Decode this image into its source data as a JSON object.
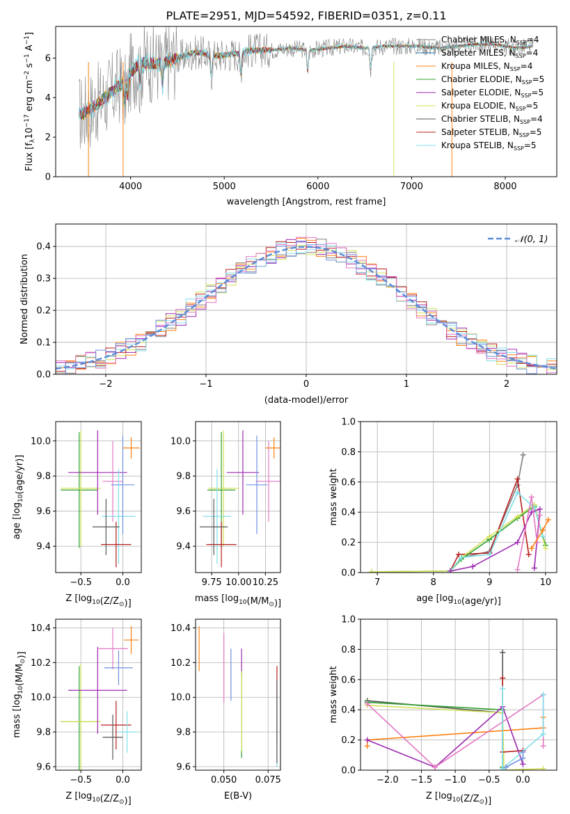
{
  "figure": {
    "title": "PLATE=2951, MJD=54592, FIBERID=0351, z=0.11"
  },
  "colors": {
    "ChabrierMILES": "#7f7f7f",
    "SalpeterMILES": "#1f77b4",
    "KroupaMILES": "#ff7f0e",
    "ChabrierELODIE": "#2ca02c",
    "SalpeterELODIE": "#9c27b0",
    "KroupaELODIE": "#d4e157",
    "ChabrierSTELIB": "#555555",
    "SalpeterSTELIB": "#b71c1c",
    "KroupaSTELIB": "#80deea",
    "extra1": "#e377c2",
    "extra2": "#6f8fdf",
    "extra3": "#bcbd22",
    "gaussian": "#5b8bd8"
  },
  "chart_data": [
    {
      "id": "spectrum",
      "type": "line",
      "xlabel": "wavelength [Angstrom, rest frame]",
      "ylabel_parts": [
        "Flux [f",
        "λ",
        "10",
        "−17",
        " erg cm",
        "−2",
        " s",
        "−1",
        " A",
        "−1",
        "]"
      ],
      "xlim": [
        3200,
        8550
      ],
      "ylim": [
        0,
        7.6
      ],
      "xticks": [
        4000,
        5000,
        6000,
        7000,
        8000
      ],
      "yticks": [
        0,
        2,
        4,
        6
      ],
      "grid": false,
      "legend_position": "right",
      "x": [
        3500,
        3700,
        3900,
        4100,
        4300,
        4500,
        4700,
        4900,
        5100,
        5300,
        5500,
        5700,
        5900,
        6100,
        6300,
        6500,
        6700,
        6900,
        7100,
        7300,
        7500,
        7700,
        7900,
        8100,
        8300
      ],
      "y": [
        3.2,
        3.9,
        4.7,
        5.8,
        5.7,
        6.0,
        6.3,
        6.1,
        6.2,
        6.4,
        6.4,
        6.5,
        6.4,
        6.5,
        6.6,
        6.5,
        6.6,
        6.6,
        6.6,
        6.5,
        6.6,
        6.7,
        6.7,
        6.5,
        6.6
      ],
      "series": [
        {
          "name_parts": [
            "Chabrier MILES, N",
            "SSP",
            "=4"
          ],
          "color_key": "ChabrierMILES",
          "noise": 1.3
        },
        {
          "name_parts": [
            "Salpeter MILES, N",
            "SSP",
            "=4"
          ],
          "color_key": "SalpeterMILES",
          "noise": 0.2
        },
        {
          "name_parts": [
            "Kroupa MILES, N",
            "SSP",
            "=4"
          ],
          "color_key": "KroupaMILES",
          "noise": 0.25
        },
        {
          "name_parts": [
            "Chabrier ELODIE, N",
            "SSP",
            "=5"
          ],
          "color_key": "ChabrierELODIE",
          "noise": 0.2
        },
        {
          "name_parts": [
            "Salpeter ELODIE, N",
            "SSP",
            "=5"
          ],
          "color_key": "SalpeterELODIE",
          "noise": 0.2
        },
        {
          "name_parts": [
            "Kroupa ELODIE, N",
            "SSP",
            "=5"
          ],
          "color_key": "KroupaELODIE",
          "noise": 0.2
        },
        {
          "name_parts": [
            "Chabrier STELIB, N",
            "SSP",
            "=4"
          ],
          "color_key": "ChabrierSTELIB",
          "noise": 0.2
        },
        {
          "name_parts": [
            "Salpeter STELIB, N",
            "SSP",
            "=5"
          ],
          "color_key": "SalpeterSTELIB",
          "noise": 0.2
        },
        {
          "name_parts": [
            "Kroupa STELIB, N",
            "SSP",
            "=5"
          ],
          "color_key": "KroupaSTELIB",
          "noise": 0.35
        }
      ]
    },
    {
      "id": "residuals",
      "type": "line",
      "xlabel": "(data-model)/error",
      "ylabel": "Normed distribution",
      "xlim": [
        -2.5,
        2.5
      ],
      "ylim": [
        0,
        0.47
      ],
      "xticks": [
        -2,
        -1,
        0,
        1,
        2
      ],
      "yticks": [
        0.0,
        0.1,
        0.2,
        0.3,
        0.4
      ],
      "grid": true,
      "legend_position": "top-right",
      "legend": "𝒩(0, 1)",
      "bin_width": 0.1,
      "bin_start": -2.5,
      "series_color_keys": [
        "ChabrierMILES",
        "KroupaMILES",
        "SalpeterELODIE",
        "KroupaELODIE",
        "SalpeterSTELIB",
        "KroupaSTELIB",
        "extra1",
        "extra2"
      ]
    },
    {
      "id": "z-age",
      "type": "scatter",
      "xlabel": "Z [log10(Z/Z⊙)]",
      "ylabel": "age  [log10(age/yr)]",
      "xlim": [
        -0.8,
        0.22
      ],
      "ylim": [
        9.25,
        10.11
      ],
      "xticks": [
        -0.5,
        0.0
      ],
      "yticks": [
        9.4,
        9.6,
        9.8,
        10.0
      ],
      "grid": true,
      "points": [
        {
          "x": -0.52,
          "y": 9.72,
          "xerr": 0.22,
          "yerr": 0.33,
          "color_key": "ChabrierELODIE"
        },
        {
          "x": -0.5,
          "y": 9.73,
          "xerr": 0.24,
          "yerr": 0.33,
          "color_key": "KroupaELODIE"
        },
        {
          "x": -0.3,
          "y": 9.82,
          "xerr": 0.35,
          "yerr": 0.24,
          "color_key": "SalpeterELODIE"
        },
        {
          "x": -0.12,
          "y": 9.77,
          "xerr": 0.12,
          "yerr": 0.23,
          "color_key": "extra1"
        },
        {
          "x": -0.05,
          "y": 9.57,
          "xerr": 0.2,
          "yerr": 0.27,
          "color_key": "KroupaSTELIB"
        },
        {
          "x": -0.08,
          "y": 9.41,
          "xerr": 0.18,
          "yerr": 0.13,
          "color_key": "SalpeterSTELIB"
        },
        {
          "x": -0.2,
          "y": 9.51,
          "xerr": 0.16,
          "yerr": 0.16,
          "color_key": "ChabrierSTELIB"
        },
        {
          "x": 0.0,
          "y": 9.75,
          "xerr": 0.14,
          "yerr": 0.28,
          "color_key": "extra2"
        },
        {
          "x": 0.1,
          "y": 9.96,
          "xerr": 0.1,
          "yerr": 0.06,
          "color_key": "KroupaMILES"
        }
      ]
    },
    {
      "id": "mass-age",
      "type": "scatter",
      "xlabel": "mass [log10(M/M⊙)]",
      "ylabel": "",
      "xlim": [
        9.6,
        10.39
      ],
      "ylim": [
        9.25,
        10.11
      ],
      "xticks": [
        9.75,
        10.0,
        10.25
      ],
      "yticks": [
        9.4,
        9.6,
        9.8,
        10.0
      ],
      "grid": true,
      "points": [
        {
          "x": 9.84,
          "y": 9.72,
          "xerr": 0.13,
          "yerr": 0.33,
          "color_key": "ChabrierELODIE"
        },
        {
          "x": 9.86,
          "y": 9.73,
          "xerr": 0.14,
          "yerr": 0.33,
          "color_key": "KroupaELODIE"
        },
        {
          "x": 10.04,
          "y": 9.82,
          "xerr": 0.15,
          "yerr": 0.24,
          "color_key": "SalpeterELODIE"
        },
        {
          "x": 10.28,
          "y": 9.77,
          "xerr": 0.12,
          "yerr": 0.23,
          "color_key": "extra1"
        },
        {
          "x": 9.8,
          "y": 9.57,
          "xerr": 0.13,
          "yerr": 0.27,
          "color_key": "KroupaSTELIB"
        },
        {
          "x": 9.84,
          "y": 9.41,
          "xerr": 0.14,
          "yerr": 0.13,
          "color_key": "SalpeterSTELIB"
        },
        {
          "x": 9.77,
          "y": 9.51,
          "xerr": 0.13,
          "yerr": 0.16,
          "color_key": "ChabrierSTELIB"
        },
        {
          "x": 10.17,
          "y": 9.75,
          "xerr": 0.1,
          "yerr": 0.28,
          "color_key": "extra2"
        },
        {
          "x": 10.33,
          "y": 9.96,
          "xerr": 0.08,
          "yerr": 0.06,
          "color_key": "KroupaMILES"
        }
      ]
    },
    {
      "id": "age-weight",
      "type": "line",
      "xlabel": "age  [log10(age/yr)]",
      "ylabel": "mass weight",
      "xlim": [
        6.7,
        10.2
      ],
      "ylim": [
        0,
        1.0
      ],
      "xticks": [
        7,
        8,
        9,
        10
      ],
      "yticks": [
        0.0,
        0.2,
        0.4,
        0.6,
        0.8,
        1.0
      ],
      "grid": true,
      "series": [
        {
          "color_key": "ChabrierMILES",
          "x": [
            8.3,
            8.5,
            9.0,
            9.5,
            9.6
          ],
          "y": [
            0.01,
            0.1,
            0.14,
            0.58,
            0.78
          ]
        },
        {
          "color_key": "SalpeterSTELIB",
          "x": [
            8.3,
            8.45,
            9.0,
            9.5,
            9.7
          ],
          "y": [
            0.01,
            0.12,
            0.13,
            0.62,
            0.12
          ]
        },
        {
          "color_key": "ChabrierELODIE",
          "x": [
            6.9,
            8.3,
            8.5,
            9.0,
            9.5,
            9.8,
            10.0
          ],
          "y": [
            0.005,
            0.01,
            0.09,
            0.22,
            0.36,
            0.44,
            0.18
          ]
        },
        {
          "color_key": "KroupaELODIE",
          "x": [
            6.9,
            8.3,
            8.5,
            9.0,
            9.5,
            9.8,
            10.0
          ],
          "y": [
            0.005,
            0.01,
            0.1,
            0.24,
            0.37,
            0.45,
            0.16
          ]
        },
        {
          "color_key": "KroupaSTELIB",
          "x": [
            8.3,
            8.5,
            9.0,
            9.5,
            9.8,
            9.95
          ],
          "y": [
            0.01,
            0.1,
            0.12,
            0.53,
            0.43,
            0.24
          ]
        },
        {
          "color_key": "SalpeterELODIE",
          "x": [
            8.3,
            8.7,
            9.5,
            9.75,
            9.9,
            9.8
          ],
          "y": [
            0.01,
            0.04,
            0.2,
            0.4,
            0.42,
            0.03
          ]
        },
        {
          "color_key": "extra1",
          "x": [
            9.5,
            9.75,
            9.85,
            9.9
          ],
          "y": [
            0.02,
            0.5,
            0.2,
            0.38
          ]
        },
        {
          "color_key": "KroupaMILES",
          "x": [
            9.75,
            9.95,
            10.05
          ],
          "y": [
            0.16,
            0.28,
            0.35
          ]
        }
      ]
    },
    {
      "id": "z-mass",
      "type": "scatter",
      "xlabel": "Z [log10(Z/Z⊙)]",
      "ylabel": "mass [log10(M/M⊙)]",
      "xlim": [
        -0.8,
        0.22
      ],
      "ylim": [
        9.58,
        10.45
      ],
      "xticks": [
        -0.5,
        0.0
      ],
      "yticks": [
        9.6,
        9.8,
        10.0,
        10.2,
        10.4
      ],
      "grid": true,
      "points": [
        {
          "x": -0.52,
          "y": 9.86,
          "xerr": 0.22,
          "yerr": 0.32,
          "color_key": "ChabrierELODIE"
        },
        {
          "x": -0.5,
          "y": 9.86,
          "xerr": 0.24,
          "yerr": 0.33,
          "color_key": "KroupaELODIE"
        },
        {
          "x": -0.3,
          "y": 10.04,
          "xerr": 0.35,
          "yerr": 0.25,
          "color_key": "SalpeterELODIE"
        },
        {
          "x": -0.12,
          "y": 10.28,
          "xerr": 0.18,
          "yerr": 0.12,
          "color_key": "extra1"
        },
        {
          "x": -0.05,
          "y": 10.17,
          "xerr": 0.17,
          "yerr": 0.1,
          "color_key": "extra2"
        },
        {
          "x": -0.08,
          "y": 9.84,
          "xerr": 0.18,
          "yerr": 0.14,
          "color_key": "SalpeterSTELIB"
        },
        {
          "x": -0.12,
          "y": 9.77,
          "xerr": 0.12,
          "yerr": 0.13,
          "color_key": "ChabrierSTELIB"
        },
        {
          "x": 0.05,
          "y": 9.8,
          "xerr": 0.12,
          "yerr": 0.12,
          "color_key": "KroupaSTELIB"
        },
        {
          "x": 0.1,
          "y": 10.33,
          "xerr": 0.09,
          "yerr": 0.08,
          "color_key": "KroupaMILES"
        }
      ]
    },
    {
      "id": "ebv-mass",
      "type": "scatter",
      "xlabel": "E(B-V)",
      "ylabel": "",
      "xlim": [
        0.034,
        0.082
      ],
      "ylim": [
        9.58,
        10.45
      ],
      "xticks": [
        0.05,
        0.075
      ],
      "yticks": [
        9.6,
        9.8,
        10.0,
        10.2,
        10.4
      ],
      "grid": true,
      "points": [
        {
          "x": 0.036,
          "y": 10.28,
          "xerr": 0,
          "yerr": 0.13,
          "color_key": "KroupaMILES"
        },
        {
          "x": 0.05,
          "y": 10.17,
          "xerr": 0,
          "yerr": 0.2,
          "color_key": "extra1"
        },
        {
          "x": 0.054,
          "y": 10.13,
          "xerr": 0,
          "yerr": 0.15,
          "color_key": "extra2"
        },
        {
          "x": 0.06,
          "y": 10.2,
          "xerr": 0,
          "yerr": 0.08,
          "color_key": "SalpeterELODIE"
        },
        {
          "x": 0.06,
          "y": 9.9,
          "xerr": 0,
          "yerr": 0.25,
          "color_key": "ChabrierELODIE"
        },
        {
          "x": 0.06,
          "y": 9.92,
          "xerr": 0,
          "yerr": 0.23,
          "color_key": "KroupaELODIE"
        },
        {
          "x": 0.08,
          "y": 9.95,
          "xerr": 0,
          "yerr": 0.23,
          "color_key": "SalpeterSTELIB"
        },
        {
          "x": 0.08,
          "y": 9.8,
          "xerr": 0,
          "yerr": 0.2,
          "color_key": "KroupaSTELIB"
        },
        {
          "x": 0.08,
          "y": 9.86,
          "xerr": 0,
          "yerr": 0.24,
          "color_key": "ChabrierSTELIB"
        }
      ]
    },
    {
      "id": "z-weight",
      "type": "line",
      "xlabel": "Z [log10(Z/Z⊙)]",
      "ylabel": "mass weight",
      "xlim": [
        -2.4,
        0.5
      ],
      "ylim": [
        0,
        1.0
      ],
      "xticks": [
        -2.0,
        -1.5,
        -1.0,
        -0.5,
        0.0
      ],
      "yticks": [
        0.0,
        0.2,
        0.4,
        0.6,
        0.8,
        1.0
      ],
      "grid": true,
      "series": [
        {
          "color_key": "ChabrierSTELIB",
          "x": [
            -2.3,
            -0.3,
            -0.3,
            -0.3
          ],
          "y": [
            0.46,
            0.38,
            0.78,
            0.02
          ]
        },
        {
          "color_key": "ChabrierELODIE",
          "x": [
            -2.3,
            -0.3,
            -0.3
          ],
          "y": [
            0.45,
            0.4,
            0.02
          ]
        },
        {
          "color_key": "KroupaELODIE",
          "x": [
            -2.3,
            -0.3,
            -0.28,
            0.3
          ],
          "y": [
            0.43,
            0.38,
            0.0,
            0.01
          ]
        },
        {
          "color_key": "SalpeterSTELIB",
          "x": [
            -0.3,
            -0.3,
            0.0
          ],
          "y": [
            0.61,
            0.12,
            0.13
          ]
        },
        {
          "color_key": "KroupaMILES",
          "x": [
            -2.3,
            -2.3,
            0.3,
            0.3
          ],
          "y": [
            0.16,
            0.2,
            0.28,
            0.35
          ]
        },
        {
          "color_key": "SalpeterELODIE",
          "x": [
            -2.3,
            -1.3,
            -0.3,
            0.0
          ],
          "y": [
            0.2,
            0.02,
            0.42,
            0.04
          ]
        },
        {
          "color_key": "extra1",
          "x": [
            -2.3,
            -1.3,
            0.3,
            0.3
          ],
          "y": [
            0.44,
            0.02,
            0.5,
            0.16
          ]
        },
        {
          "color_key": "KroupaSTELIB",
          "x": [
            -0.3,
            -0.3,
            0.3,
            0.3
          ],
          "y": [
            0.54,
            0.01,
            0.24,
            0.5
          ]
        },
        {
          "color_key": "extra2",
          "x": [
            -0.25,
            0.0,
            0.0
          ],
          "y": [
            0.02,
            0.08,
            0.12
          ]
        }
      ]
    }
  ]
}
